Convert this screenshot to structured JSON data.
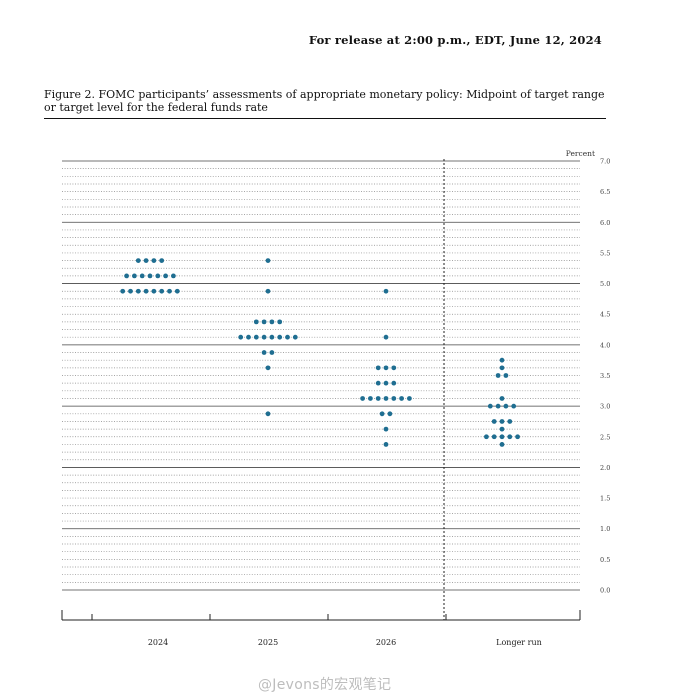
{
  "release_note": "For release at 2:00 p.m., EDT, June 12, 2024",
  "figure_caption": "Figure 2.  FOMC participants’ assessments of appropriate monetary policy:  Midpoint of target range or target level for the federal funds rate",
  "watermark": "@Jevons的宏观笔记",
  "chart_data": {
    "type": "scatter",
    "ylabel": "Percent",
    "ylim": [
      0.0,
      7.0
    ],
    "yticks": [
      "0.0",
      "0.5",
      "1.0",
      "1.5",
      "2.0",
      "2.5",
      "3.0",
      "3.5",
      "4.0",
      "4.5",
      "5.0",
      "5.5",
      "6.0",
      "6.5",
      "7.0"
    ],
    "categories": [
      "2024",
      "2025",
      "2026",
      "Longer run"
    ],
    "dot_color": "#1f6e91",
    "grid": "dotted, every 0.125",
    "series": [
      {
        "category": "2024",
        "dots": [
          {
            "y": 5.375,
            "count": 4
          },
          {
            "y": 5.125,
            "count": 7
          },
          {
            "y": 4.875,
            "count": 8
          }
        ]
      },
      {
        "category": "2025",
        "dots": [
          {
            "y": 5.375,
            "count": 1
          },
          {
            "y": 4.875,
            "count": 1
          },
          {
            "y": 4.375,
            "count": 4
          },
          {
            "y": 4.125,
            "count": 8
          },
          {
            "y": 3.875,
            "count": 2
          },
          {
            "y": 3.625,
            "count": 1
          },
          {
            "y": 2.875,
            "count": 1
          }
        ]
      },
      {
        "category": "2026",
        "dots": [
          {
            "y": 4.875,
            "count": 1
          },
          {
            "y": 4.125,
            "count": 1
          },
          {
            "y": 3.625,
            "count": 3
          },
          {
            "y": 3.375,
            "count": 3
          },
          {
            "y": 3.125,
            "count": 7
          },
          {
            "y": 2.875,
            "count": 2
          },
          {
            "y": 2.625,
            "count": 1
          },
          {
            "y": 2.375,
            "count": 1
          }
        ]
      },
      {
        "category": "Longer run",
        "dots": [
          {
            "y": 3.75,
            "count": 1
          },
          {
            "y": 3.625,
            "count": 1
          },
          {
            "y": 3.5,
            "count": 2
          },
          {
            "y": 3.125,
            "count": 1
          },
          {
            "y": 3.0,
            "count": 4
          },
          {
            "y": 2.75,
            "count": 3
          },
          {
            "y": 2.625,
            "count": 1
          },
          {
            "y": 2.5,
            "count": 5
          },
          {
            "y": 2.375,
            "count": 1
          }
        ]
      }
    ]
  }
}
